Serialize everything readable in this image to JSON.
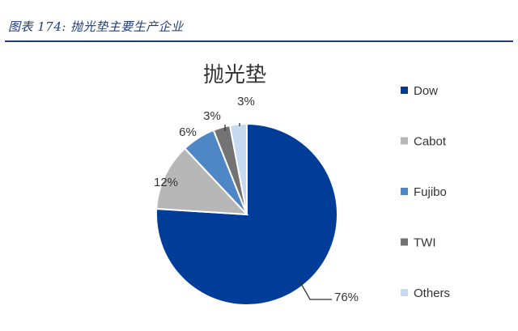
{
  "figure": {
    "caption": "图表 174: 抛光垫主要生产企业"
  },
  "chart_data": {
    "type": "pie",
    "title": "抛光垫",
    "legend_position": "right",
    "slices": [
      {
        "name": "Dow",
        "value": 76,
        "label": "76%",
        "color": "#003d99"
      },
      {
        "name": "Cabot",
        "value": 12,
        "label": "12%",
        "color": "#b7b7b7"
      },
      {
        "name": "Fujibo",
        "value": 6,
        "label": "6%",
        "color": "#4f86c6"
      },
      {
        "name": "TWI",
        "value": 3,
        "label": "3%",
        "color": "#737373"
      },
      {
        "name": "Others",
        "value": 3,
        "label": "3%",
        "color": "#c5d9f1"
      }
    ]
  }
}
